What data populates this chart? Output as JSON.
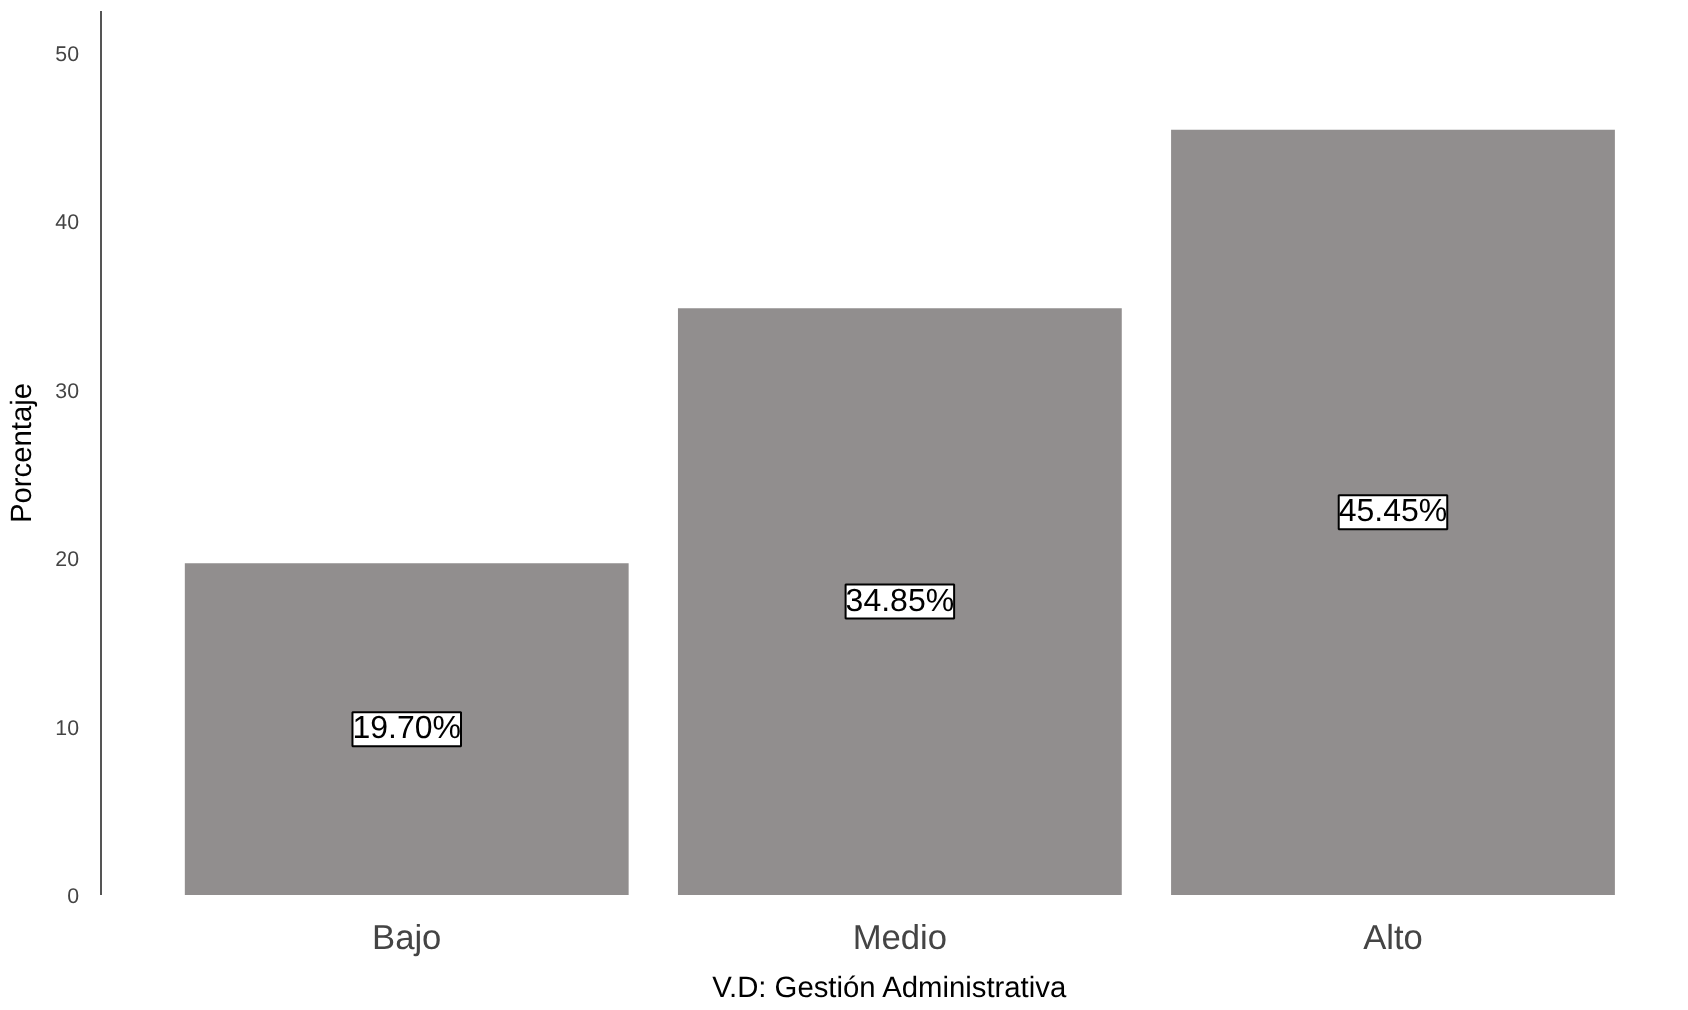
{
  "chart_data": {
    "type": "bar",
    "xlabel": "V.D: Gestión Administrativa",
    "ylabel": "Porcentaje",
    "categories": [
      "Bajo",
      "Medio",
      "Alto"
    ],
    "values": [
      19.7,
      34.85,
      45.45
    ],
    "value_labels": [
      "19.70%",
      "34.85%",
      "45.45%"
    ],
    "color": "#918e8e",
    "ylim": [
      0,
      52.5
    ],
    "yticks": [
      0,
      10,
      20,
      30,
      40,
      50
    ],
    "grid": false
  }
}
